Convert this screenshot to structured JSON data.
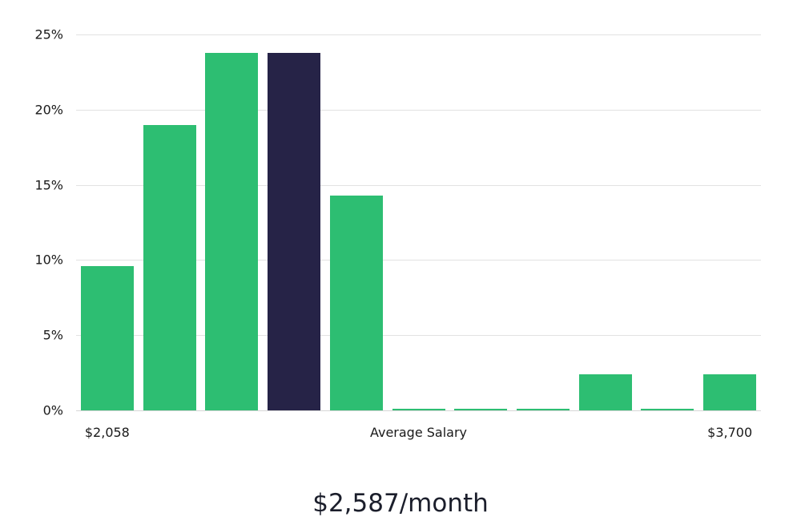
{
  "chart_data": {
    "type": "bar",
    "title": "$2,587/month",
    "values": [
      9.6,
      19.0,
      23.8,
      23.8,
      14.3,
      0.1,
      0.1,
      0.1,
      2.4,
      0.1,
      2.4
    ],
    "highlight_index": 3,
    "bar_color": "#2DBE72",
    "highlight_color": "#262347",
    "ylim": [
      0,
      25
    ],
    "y_tick_values": [
      25,
      20,
      15,
      10,
      5,
      0
    ],
    "y_tick_labels": [
      "25%",
      "20%",
      "15%",
      "10%",
      "5%",
      "0%"
    ],
    "x_tick_labels": [
      "$2,058",
      "Average Salary",
      "$3,700"
    ],
    "grid": true,
    "legend": "none"
  }
}
